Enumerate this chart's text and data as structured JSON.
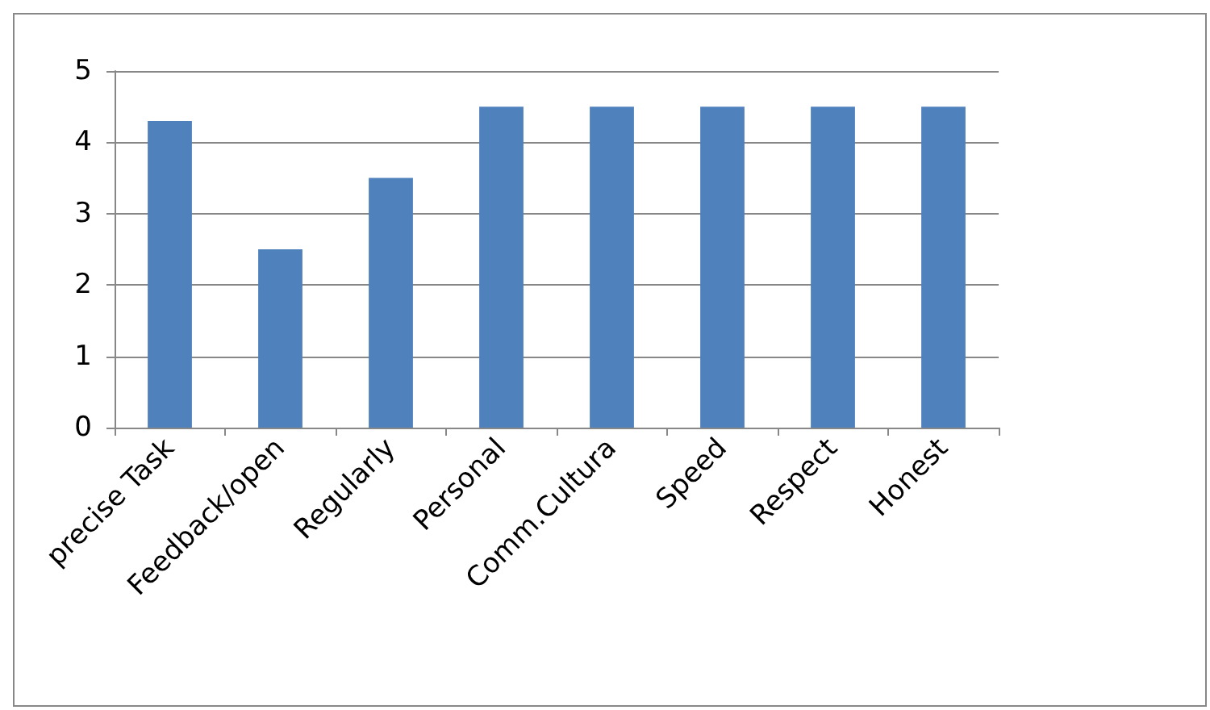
{
  "chart_data": {
    "type": "bar",
    "categories": [
      "precise Task",
      "Feedback/open",
      "Regularly",
      "Personal",
      "Comm.Cultura",
      "Speed",
      "Respect",
      "Honest"
    ],
    "values": [
      4.3,
      2.5,
      3.5,
      4.5,
      4.5,
      4.5,
      4.5,
      4.5
    ],
    "color": "#4f81bd",
    "ylim": [
      0,
      5
    ],
    "yticks": [
      0,
      1,
      2,
      3,
      4,
      5
    ],
    "grid": "y"
  }
}
